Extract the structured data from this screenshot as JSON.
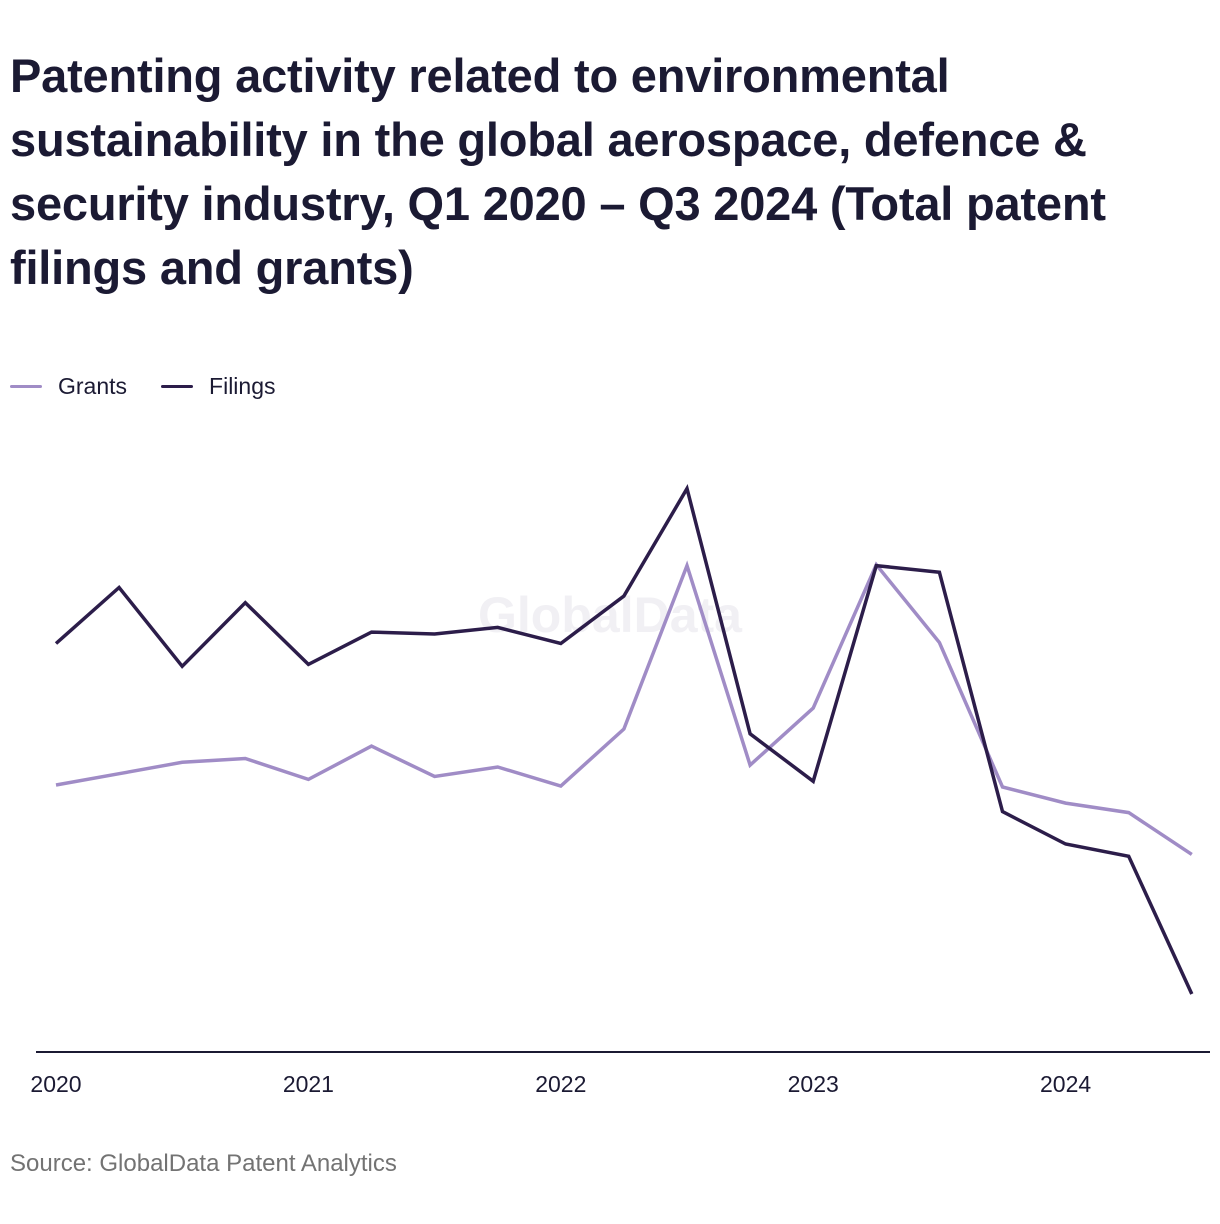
{
  "title": "Patenting activity related to environmental sustainability in the global aerospace, defence & security industry, Q1 2020 – Q3 2024 (Total patent filings and grants)",
  "source": "Source: GlobalData Patent Analytics",
  "watermark": "GlobalData",
  "colors": {
    "grants": "#a08cc6",
    "filings": "#2c1d4a",
    "axis": "#1b1a33",
    "watermark": "#f1f0f4"
  },
  "chart_data": {
    "type": "line",
    "title": "Patenting activity related to environmental sustainability in the global aerospace, defence & security industry, Q1 2020 – Q3 2024 (Total patent filings and grants)",
    "x": [
      "Q1 2020",
      "Q2 2020",
      "Q3 2020",
      "Q4 2020",
      "Q1 2021",
      "Q2 2021",
      "Q3 2021",
      "Q4 2021",
      "Q1 2022",
      "Q2 2022",
      "Q3 2022",
      "Q4 2022",
      "Q1 2023",
      "Q2 2023",
      "Q3 2023",
      "Q4 2023",
      "Q1 2024",
      "Q2 2024",
      "Q3 2024"
    ],
    "x_tick_labels": [
      "2020",
      "2021",
      "2022",
      "2023",
      "2024"
    ],
    "x_tick_positions": [
      "Q1 2020",
      "Q1 2021",
      "Q1 2022",
      "Q1 2023",
      "Q1 2024"
    ],
    "y_axis_visible": false,
    "ylim": [
      0,
      600
    ],
    "grid": false,
    "legend_position": "top-left",
    "series": [
      {
        "name": "Grants",
        "color": "#a08cc6",
        "values": [
          281,
          293,
          305,
          309,
          287,
          322,
          290,
          300,
          280,
          340,
          512,
          302,
          362,
          513,
          431,
          279,
          262,
          252,
          208
        ]
      },
      {
        "name": "Filings",
        "color": "#2c1d4a",
        "values": [
          430,
          489,
          406,
          473,
          408,
          442,
          440,
          447,
          430,
          480,
          593,
          335,
          285,
          512,
          505,
          253,
          219,
          206,
          61
        ]
      }
    ]
  }
}
